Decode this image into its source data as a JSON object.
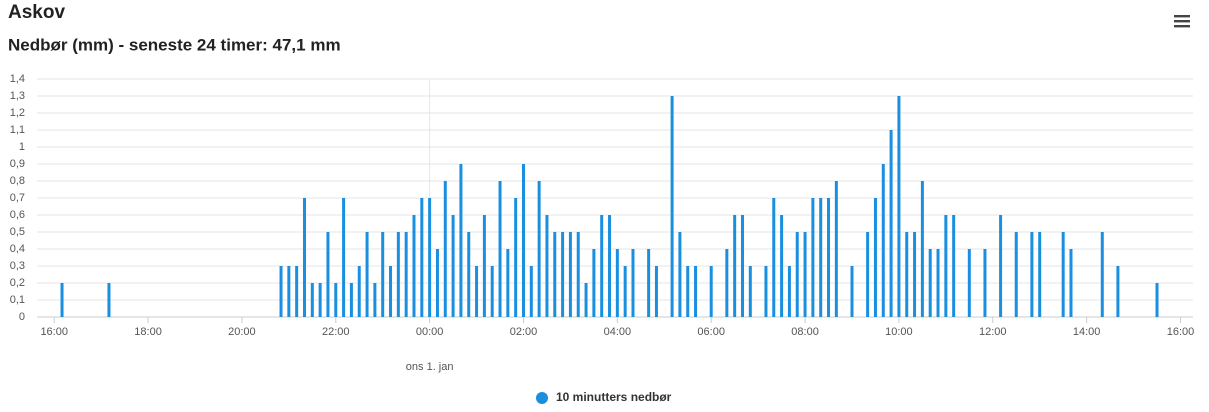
{
  "chart_data": {
    "type": "bar",
    "title": "Askov",
    "subtitle": "Nedbør (mm) - seneste 24 timer: 47,1 mm",
    "date_label": "ons 1. jan",
    "series": [
      {
        "name": "10 minutters nedbør",
        "color": "#1a8fe0",
        "x": [
          970,
          1030,
          1250,
          1260,
          1270,
          1280,
          1290,
          1300,
          1310,
          1320,
          1330,
          1340,
          1350,
          1360,
          1370,
          1380,
          1390,
          1400,
          1410,
          1420,
          1430,
          1440,
          1450,
          1460,
          1470,
          1480,
          1490,
          1500,
          1510,
          1520,
          1530,
          1540,
          1550,
          1560,
          1570,
          1580,
          1590,
          1600,
          1610,
          1620,
          1630,
          1640,
          1650,
          1660,
          1670,
          1680,
          1690,
          1700,
          1720,
          1730,
          1750,
          1760,
          1770,
          1780,
          1800,
          1820,
          1830,
          1840,
          1850,
          1870,
          1880,
          1890,
          1900,
          1910,
          1920,
          1930,
          1940,
          1950,
          1960,
          1980,
          2000,
          2010,
          2020,
          2030,
          2040,
          2050,
          2060,
          2070,
          2080,
          2090,
          2100,
          2110,
          2130,
          2150,
          2170,
          2190,
          2210,
          2220,
          2250,
          2260,
          2300,
          2320,
          2370
        ],
        "values": [
          0.2,
          0.2,
          0.3,
          0.3,
          0.3,
          0.7,
          0.2,
          0.2,
          0.5,
          0.2,
          0.7,
          0.2,
          0.3,
          0.5,
          0.2,
          0.5,
          0.3,
          0.5,
          0.5,
          0.6,
          0.7,
          0.7,
          0.4,
          0.8,
          0.6,
          0.9,
          0.5,
          0.3,
          0.6,
          0.3,
          0.8,
          0.4,
          0.7,
          0.9,
          0.3,
          0.8,
          0.6,
          0.5,
          0.5,
          0.5,
          0.5,
          0.2,
          0.4,
          0.6,
          0.6,
          0.4,
          0.3,
          0.4,
          0.4,
          0.3,
          1.3,
          0.5,
          0.3,
          0.3,
          0.3,
          0.4,
          0.6,
          0.6,
          0.3,
          0.3,
          0.7,
          0.6,
          0.3,
          0.5,
          0.5,
          0.7,
          0.7,
          0.7,
          0.8,
          0.3,
          0.5,
          0.7,
          0.9,
          1.1,
          1.3,
          0.5,
          0.5,
          0.8,
          0.4,
          0.4,
          0.6,
          0.6,
          0.4,
          0.4,
          0.6,
          0.5,
          0.5,
          0.5,
          0.5,
          0.4,
          0.5,
          0.3,
          0.2
        ]
      }
    ],
    "xlim": [
      938,
      2416
    ],
    "xticks": [
      {
        "value": 960,
        "label": "16:00"
      },
      {
        "value": 1080,
        "label": "18:00"
      },
      {
        "value": 1200,
        "label": "20:00"
      },
      {
        "value": 1320,
        "label": "22:00"
      },
      {
        "value": 1440,
        "label": "00:00"
      },
      {
        "value": 1560,
        "label": "02:00"
      },
      {
        "value": 1680,
        "label": "04:00"
      },
      {
        "value": 1800,
        "label": "06:00"
      },
      {
        "value": 1920,
        "label": "08:00"
      },
      {
        "value": 2040,
        "label": "10:00"
      },
      {
        "value": 2160,
        "label": "12:00"
      },
      {
        "value": 2280,
        "label": "14:00"
      },
      {
        "value": 2400,
        "label": "16:00"
      }
    ],
    "ylim": [
      0,
      1.4
    ],
    "yticks": [
      0,
      {
        "value": 0.1,
        "label": "0,1"
      },
      {
        "value": 0.2,
        "label": "0,2"
      },
      {
        "value": 0.3,
        "label": "0,3"
      },
      {
        "value": 0.4,
        "label": "0,4"
      },
      {
        "value": 0.5,
        "label": "0,5"
      },
      {
        "value": 0.6,
        "label": "0,6"
      },
      {
        "value": 0.7,
        "label": "0,7"
      },
      {
        "value": 0.8,
        "label": "0,8"
      },
      {
        "value": 0.9,
        "label": "0,9"
      },
      1,
      {
        "value": 1.1,
        "label": "1,1"
      },
      {
        "value": 1.2,
        "label": "1,2"
      },
      {
        "value": 1.3,
        "label": "1,3"
      },
      {
        "value": 1.4,
        "label": "1,4"
      }
    ],
    "grid": true,
    "legend": "bottom"
  }
}
